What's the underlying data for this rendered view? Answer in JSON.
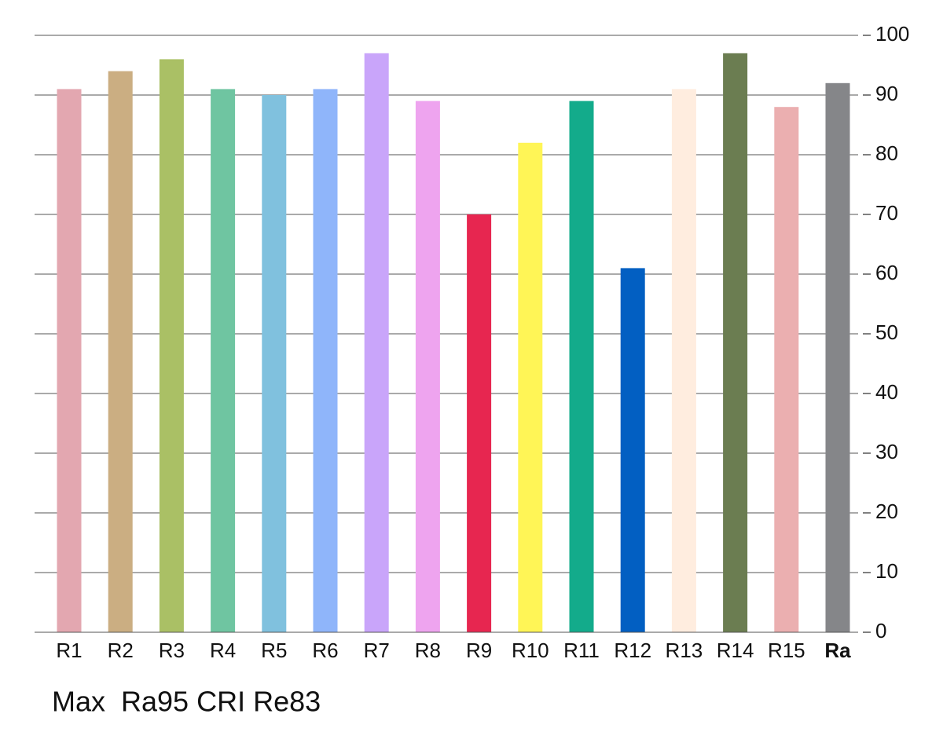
{
  "chart_data": {
    "type": "bar",
    "categories": [
      "R1",
      "R2",
      "R3",
      "R4",
      "R5",
      "R6",
      "R7",
      "R8",
      "R9",
      "R10",
      "R11",
      "R12",
      "R13",
      "R14",
      "R15",
      "Ra"
    ],
    "values": [
      91,
      94,
      96,
      91,
      90,
      91,
      97,
      89,
      70,
      82,
      89,
      61,
      91,
      97,
      88,
      92
    ],
    "colors": [
      "#e3a7b0",
      "#cbae82",
      "#aac065",
      "#6fc5a1",
      "#80c1de",
      "#8fb5fa",
      "#c9a5fa",
      "#eea4ef",
      "#e72650",
      "#fff556",
      "#13ab8b",
      "#025fc2",
      "#ffeddf",
      "#6b7d51",
      "#ebafb0",
      "#858689"
    ],
    "ylim": [
      0,
      100
    ],
    "yticks": [
      0,
      10,
      20,
      30,
      40,
      50,
      60,
      70,
      80,
      90,
      100
    ],
    "grid": true,
    "y_axis_side": "right",
    "footnote": "Max  Ra95 CRI Re83"
  }
}
